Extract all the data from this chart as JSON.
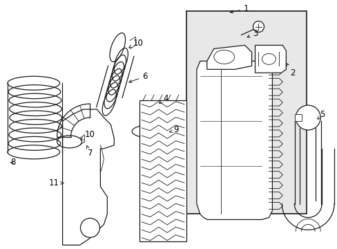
{
  "bg_color": "#ffffff",
  "line_color": "#1a1a1a",
  "box_fill": "#e8e8e8",
  "fig_width": 4.89,
  "fig_height": 3.6,
  "dpi": 100
}
